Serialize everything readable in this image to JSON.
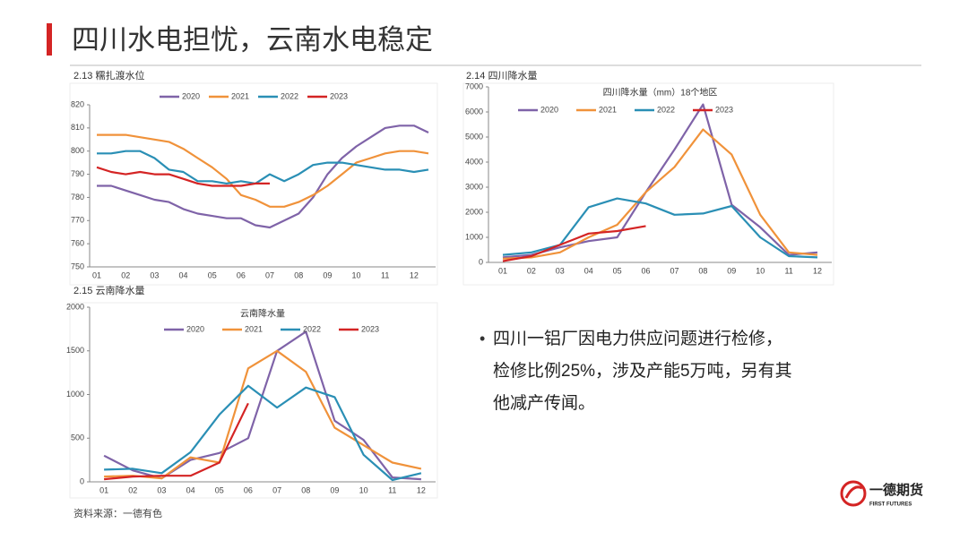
{
  "header": {
    "title": "四川水电担忧，云南水电稳定"
  },
  "chart_data": [
    {
      "type": "line",
      "caption": "2.13 糯扎渡水位",
      "categories": [
        "01",
        null,
        "02",
        null,
        "03",
        null,
        "04",
        null,
        "05",
        null,
        "06",
        null,
        "07",
        null,
        "08",
        null,
        "09",
        null,
        "10",
        null,
        "11",
        null,
        "12",
        null
      ],
      "series": [
        {
          "name": "2020",
          "color": "#7f63a8",
          "values": [
            785,
            785,
            783,
            781,
            779,
            778,
            775,
            773,
            772,
            771,
            771,
            768,
            767,
            770,
            773,
            780,
            790,
            797,
            802,
            806,
            810,
            811,
            811,
            808
          ]
        },
        {
          "name": "2021",
          "color": "#f0923a",
          "values": [
            807,
            807,
            807,
            806,
            805,
            804,
            801,
            797,
            793,
            788,
            781,
            779,
            776,
            776,
            778,
            781,
            785,
            790,
            795,
            797,
            799,
            800,
            800,
            799
          ]
        },
        {
          "name": "2022",
          "color": "#2a8fb5",
          "values": [
            799,
            799,
            800,
            800,
            797,
            792,
            791,
            787,
            787,
            786,
            787,
            786,
            790,
            787,
            790,
            794,
            795,
            795,
            794,
            793,
            792,
            792,
            791,
            792
          ]
        },
        {
          "name": "2023",
          "color": "#d42424",
          "values": [
            793,
            791,
            790,
            791,
            790,
            790,
            788,
            786,
            785,
            785,
            785,
            786,
            786,
            null,
            null,
            null,
            null,
            null,
            null,
            null,
            null,
            null,
            null,
            null
          ]
        }
      ],
      "ylim": [
        750,
        820
      ],
      "yticks": [
        750,
        760,
        770,
        780,
        790,
        800,
        810,
        820
      ]
    },
    {
      "type": "line",
      "caption": "2.14 四川降水量",
      "title": "四川降水量（mm）18个地区",
      "categories": [
        "01",
        "02",
        "03",
        "04",
        "05",
        "06",
        "07",
        "08",
        "09",
        "10",
        "11",
        "12"
      ],
      "series": [
        {
          "name": "2020",
          "color": "#7f63a8",
          "values": [
            200,
            300,
            600,
            850,
            1000,
            2800,
            4500,
            6300,
            2300,
            1400,
            300,
            400
          ]
        },
        {
          "name": "2021",
          "color": "#f0923a",
          "values": [
            150,
            200,
            400,
            1000,
            1500,
            2800,
            3800,
            5300,
            4300,
            1900,
            400,
            300
          ]
        },
        {
          "name": "2022",
          "color": "#2a8fb5",
          "values": [
            300,
            400,
            700,
            2200,
            2550,
            2350,
            1900,
            1950,
            2250,
            1000,
            250,
            200
          ]
        },
        {
          "name": "2023",
          "color": "#d42424",
          "values": [
            50,
            250,
            700,
            1150,
            1250,
            1450,
            null,
            null,
            null,
            null,
            null,
            null
          ]
        }
      ],
      "ylim": [
        0,
        7000
      ],
      "yticks": [
        0,
        1000,
        2000,
        3000,
        4000,
        5000,
        6000,
        7000
      ]
    },
    {
      "type": "line",
      "caption": "2.15 云南降水量",
      "title": "云南降水量",
      "categories": [
        "01",
        "02",
        "03",
        "04",
        "05",
        "06",
        "07",
        "08",
        "09",
        "10",
        "11",
        "12"
      ],
      "series": [
        {
          "name": "2020",
          "color": "#7f63a8",
          "values": [
            300,
            130,
            40,
            250,
            330,
            500,
            1500,
            1720,
            700,
            480,
            50,
            30
          ]
        },
        {
          "name": "2021",
          "color": "#f0923a",
          "values": [
            60,
            70,
            40,
            280,
            220,
            1300,
            1500,
            1260,
            620,
            420,
            220,
            150
          ]
        },
        {
          "name": "2022",
          "color": "#2a8fb5",
          "values": [
            140,
            150,
            100,
            340,
            770,
            1100,
            850,
            1080,
            970,
            310,
            20,
            100
          ]
        },
        {
          "name": "2023",
          "color": "#d42424",
          "values": [
            30,
            60,
            70,
            70,
            220,
            900,
            null,
            null,
            null,
            null,
            null,
            null
          ]
        }
      ],
      "ylim": [
        0,
        2000
      ],
      "yticks": [
        0,
        500,
        1000,
        1500,
        2000
      ]
    }
  ],
  "bullet": {
    "lines": [
      "四川一铝厂因电力供应问题进行检修，",
      "检修比例25%，涉及产能5万吨，另有其",
      "他减产传闻。"
    ]
  },
  "source": "资料来源：一德有色",
  "logo": {
    "name": "一德期货",
    "subtitle": "FIRST FUTURES"
  }
}
